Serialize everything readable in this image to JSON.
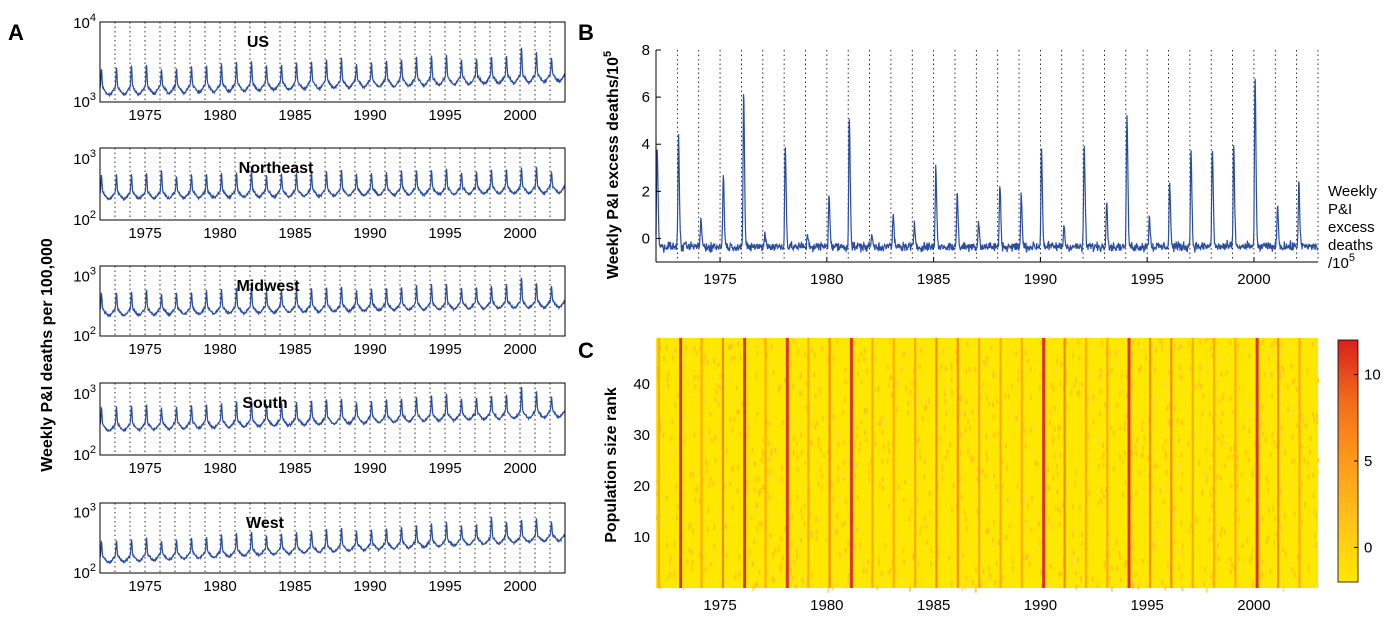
{
  "panels": {
    "A": {
      "letter": "A",
      "ylabel": "Weekly P&I deaths per 100,000"
    },
    "B": {
      "letter": "B",
      "ylabel": "Weekly P&I excess deaths/10",
      "ylabel_sup": "5"
    },
    "C": {
      "letter": "C",
      "ylabel": "Population size rank"
    }
  },
  "colorbar": {
    "title_lines": [
      "Weekly",
      "P&I",
      "excess",
      "deaths",
      "/10"
    ],
    "title_sup": "5",
    "ticks": [
      "10",
      "5",
      "0"
    ],
    "colors": [
      "#ffe800",
      "#ffc21a",
      "#ff9a1a",
      "#f36b1a",
      "#d9201c"
    ]
  },
  "chart_data": [
    {
      "panel": "A",
      "type": "line",
      "title": "US",
      "yscale": "log",
      "ylim": [
        700,
        10000
      ],
      "ytick_labels": [
        "10^3",
        "10^4"
      ],
      "xlim": [
        1972,
        2003
      ],
      "xtick_labels": [
        "1975",
        "1980",
        "1985",
        "1990",
        "1995",
        "2000"
      ],
      "grid": "vertical dotted at each year",
      "description_values": {
        "baseline_start": 1000,
        "baseline_end": 1600,
        "peak_max": 4500,
        "peak_max_year": 2000
      }
    },
    {
      "panel": "A",
      "type": "line",
      "title": "Northeast",
      "yscale": "log",
      "ylim": [
        100,
        1500
      ],
      "ytick_labels": [
        "10^2",
        "10^3"
      ],
      "xlim": [
        1972,
        2003
      ],
      "xtick_labels": [
        "1975",
        "1980",
        "1985",
        "1990",
        "1995",
        "2000"
      ],
      "description_values": {
        "baseline_start": 250,
        "baseline_end": 320,
        "peak_max": 800,
        "peak_max_year": 1976
      }
    },
    {
      "panel": "A",
      "type": "line",
      "title": "Midwest",
      "yscale": "log",
      "ylim": [
        100,
        1500
      ],
      "ytick_labels": [
        "10^2",
        "10^3"
      ],
      "xlim": [
        1972,
        2003
      ],
      "xtick_labels": [
        "1975",
        "1980",
        "1985",
        "1990",
        "1995",
        "2000"
      ],
      "description_values": {
        "baseline_start": 250,
        "baseline_end": 350,
        "peak_max": 1100,
        "peak_max_year": 2000
      }
    },
    {
      "panel": "A",
      "type": "line",
      "title": "South",
      "yscale": "log",
      "ylim": [
        100,
        1500
      ],
      "ytick_labels": [
        "10^2",
        "10^3"
      ],
      "xlim": [
        1972,
        2003
      ],
      "xtick_labels": [
        "1975",
        "1980",
        "1985",
        "1990",
        "1995",
        "2000"
      ],
      "description_values": {
        "baseline_start": 280,
        "baseline_end": 480,
        "peak_max": 1100,
        "peak_max_year": 2000
      }
    },
    {
      "panel": "A",
      "type": "line",
      "title": "West",
      "yscale": "log",
      "ylim": [
        80,
        1500
      ],
      "ytick_labels": [
        "10^2",
        "10^3"
      ],
      "xlim": [
        1972,
        2003
      ],
      "xtick_labels": [
        "1975",
        "1980",
        "1985",
        "1990",
        "1995",
        "2000"
      ],
      "description_values": {
        "baseline_start": 140,
        "baseline_end": 360,
        "peak_max": 900,
        "peak_max_year": 1998
      }
    },
    {
      "panel": "B",
      "type": "line",
      "title": "",
      "yscale": "linear",
      "ylim": [
        -1,
        8
      ],
      "ytick_labels": [
        "0",
        "2",
        "4",
        "6",
        "8"
      ],
      "xlim": [
        1972,
        2003
      ],
      "xtick_labels": [
        "1975",
        "1980",
        "1985",
        "1990",
        "1995",
        "2000"
      ],
      "peaks": [
        {
          "year": 1972.05,
          "value": 4.1
        },
        {
          "year": 1973.05,
          "value": 4.4
        },
        {
          "year": 1974.1,
          "value": 0.9
        },
        {
          "year": 1975.15,
          "value": 2.8
        },
        {
          "year": 1976.1,
          "value": 6.2
        },
        {
          "year": 1977.1,
          "value": 0.3
        },
        {
          "year": 1978.05,
          "value": 4.0
        },
        {
          "year": 1979.1,
          "value": 0.2
        },
        {
          "year": 1980.1,
          "value": 2.0
        },
        {
          "year": 1981.05,
          "value": 5.4
        },
        {
          "year": 1982.1,
          "value": 0.2
        },
        {
          "year": 1983.1,
          "value": 1.0
        },
        {
          "year": 1984.1,
          "value": 0.6
        },
        {
          "year": 1985.1,
          "value": 3.1
        },
        {
          "year": 1986.1,
          "value": 2.0
        },
        {
          "year": 1987.1,
          "value": 0.8
        },
        {
          "year": 1988.1,
          "value": 2.3
        },
        {
          "year": 1989.1,
          "value": 1.9
        },
        {
          "year": 1990.05,
          "value": 4.0
        },
        {
          "year": 1991.1,
          "value": 0.6
        },
        {
          "year": 1992.05,
          "value": 4.0
        },
        {
          "year": 1993.1,
          "value": 1.8
        },
        {
          "year": 1994.05,
          "value": 5.4
        },
        {
          "year": 1995.1,
          "value": 1.0
        },
        {
          "year": 1996.05,
          "value": 2.4
        },
        {
          "year": 1997.05,
          "value": 3.9
        },
        {
          "year": 1998.05,
          "value": 3.9
        },
        {
          "year": 1999.05,
          "value": 4.0
        },
        {
          "year": 2000.05,
          "value": 7.0
        },
        {
          "year": 2001.1,
          "value": 1.5
        },
        {
          "year": 2002.1,
          "value": 2.5
        }
      ]
    },
    {
      "panel": "C",
      "type": "heatmap",
      "title": "",
      "xlim": [
        1972,
        2003
      ],
      "ylim": [
        0,
        49
      ],
      "xtick_labels": [
        "1975",
        "1980",
        "1985",
        "1990",
        "1995",
        "2000"
      ],
      "ytick_labels": [
        "10",
        "20",
        "30",
        "40"
      ],
      "colorbar_range": [
        -2,
        12
      ],
      "strong_years": [
        1976.1,
        1981.05,
        1990.05,
        1994.05,
        2000.05,
        1973.05,
        1978.05
      ]
    }
  ]
}
